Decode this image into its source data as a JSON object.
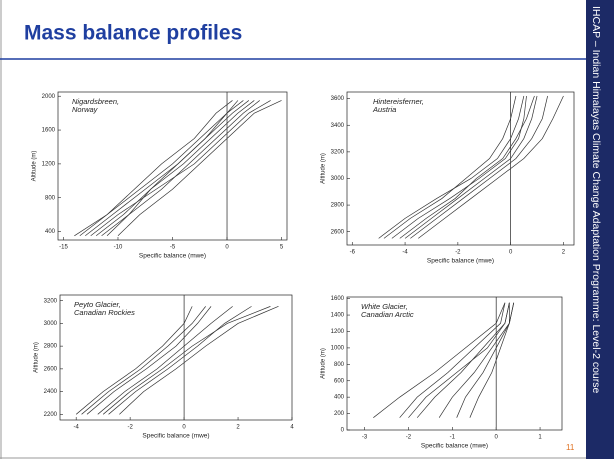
{
  "slide": {
    "title": "Mass balance profiles",
    "sidebar": "IHCAP – Indian Himalayas Climate Change Adaptation Programme: Level-2 course",
    "page_number": "11"
  },
  "chart_data": [
    {
      "type": "line",
      "title": [
        "Nigardsbreen,",
        "Norway"
      ],
      "xlabel": "Specific balance (mwe)",
      "ylabel": "Altitude (m)",
      "color": "#333333",
      "y": [
        350,
        600,
        900,
        1200,
        1500,
        1800,
        1950
      ],
      "series": [
        {
          "values": [
            -14,
            -11,
            -8,
            -5,
            -2.5,
            0,
            1.5
          ]
        },
        {
          "values": [
            -13,
            -10.5,
            -7.5,
            -4.5,
            -2,
            0.5,
            2
          ]
        },
        {
          "values": [
            -12,
            -9.5,
            -7,
            -4,
            -1.5,
            1,
            2.5
          ]
        },
        {
          "values": [
            -11,
            -9,
            -6,
            -3.5,
            -1,
            1.5,
            3
          ]
        },
        {
          "values": [
            -12.5,
            -10,
            -6.5,
            -3,
            -0.5,
            2,
            4
          ]
        },
        {
          "values": [
            -10,
            -8,
            -5,
            -2.5,
            0,
            2.5,
            5
          ]
        },
        {
          "values": [
            -13.5,
            -11,
            -8.5,
            -6,
            -3,
            -1,
            0.5
          ]
        },
        {
          "values": [
            -11.5,
            -9,
            -7,
            -4.5,
            -2,
            0,
            1
          ]
        }
      ],
      "xlim": [
        -15.5,
        5.5
      ],
      "xticks": [
        -15,
        -10,
        -5,
        0,
        5
      ],
      "ylim": [
        300,
        2050
      ],
      "yticks": [
        400,
        800,
        1200,
        1600,
        2000
      ]
    },
    {
      "type": "line",
      "title": [
        "Hintereisferner,",
        "Austria"
      ],
      "xlabel": "Specific balance (mwe)",
      "ylabel": "Altitude (m)",
      "color": "#333333",
      "y": [
        2550,
        2700,
        2850,
        3000,
        3150,
        3300,
        3450,
        3620
      ],
      "series": [
        {
          "values": [
            -5,
            -4,
            -2.8,
            -1.5,
            -0.5,
            0,
            0.3,
            0.5
          ]
        },
        {
          "values": [
            -4.5,
            -3.5,
            -2.3,
            -1.2,
            -0.2,
            0.3,
            0.5,
            0.6
          ]
        },
        {
          "values": [
            -4,
            -3,
            -2,
            -1,
            0,
            0.5,
            0.8,
            1
          ]
        },
        {
          "values": [
            -3.8,
            -2.8,
            -1.8,
            -0.8,
            0.2,
            0.8,
            1.2,
            1.4
          ]
        },
        {
          "values": [
            -4.2,
            -3.2,
            -2.1,
            -1.3,
            -0.3,
            0.2,
            0.6,
            0.9
          ]
        },
        {
          "values": [
            -3.5,
            -2.5,
            -1.5,
            -0.5,
            0.5,
            1.2,
            1.6,
            2
          ]
        },
        {
          "values": [
            -4.8,
            -3.8,
            -2.6,
            -1.7,
            -0.8,
            -0.3,
            0,
            0.2
          ]
        }
      ],
      "xlim": [
        -6.2,
        2.4
      ],
      "xticks": [
        -6,
        -4,
        -2,
        0,
        2
      ],
      "ylim": [
        2500,
        3650
      ],
      "yticks": [
        2600,
        2800,
        3000,
        3200,
        3400,
        3600
      ]
    },
    {
      "type": "line",
      "title": [
        "Peyto Glacier,",
        "Canadian Rockies"
      ],
      "xlabel": "Specific balance (mwe)",
      "ylabel": "Altitude (m)",
      "color": "#333333",
      "y": [
        2200,
        2400,
        2600,
        2800,
        3000,
        3150
      ],
      "series": [
        {
          "values": [
            -4,
            -3,
            -1.8,
            -0.8,
            0,
            0.3
          ]
        },
        {
          "values": [
            -3.6,
            -2.6,
            -1.4,
            -0.3,
            0.5,
            1
          ]
        },
        {
          "values": [
            -3.2,
            -2.2,
            -1,
            0,
            1,
            1.8
          ]
        },
        {
          "values": [
            -2.8,
            -1.8,
            -0.6,
            0.5,
            1.5,
            2.5
          ]
        },
        {
          "values": [
            -3,
            -2,
            -0.8,
            0.3,
            1.6,
            3.2
          ]
        },
        {
          "values": [
            -2.4,
            -1.5,
            -0.3,
            0.8,
            2,
            3.5
          ]
        },
        {
          "values": [
            -3.8,
            -2.8,
            -1.6,
            -0.6,
            0.3,
            0.8
          ]
        }
      ],
      "xlim": [
        -4.6,
        4
      ],
      "xticks": [
        -4,
        -2,
        0,
        2,
        4
      ],
      "ylim": [
        2150,
        3250
      ],
      "yticks": [
        2200,
        2400,
        2600,
        2800,
        3000,
        3200
      ]
    },
    {
      "type": "line",
      "title": [
        "White Glacier,",
        "Canadian Arctic"
      ],
      "xlabel": "Specific balance (mwe)",
      "ylabel": "Altitude (m)",
      "color": "#333333",
      "y": [
        150,
        400,
        700,
        1000,
        1300,
        1550
      ],
      "series": [
        {
          "values": [
            -2.8,
            -2.2,
            -1.4,
            -0.7,
            0,
            0.2
          ]
        },
        {
          "values": [
            -2.2,
            -1.8,
            -1.1,
            -0.5,
            0.1,
            0.2
          ]
        },
        {
          "values": [
            -1.8,
            -1.4,
            -0.8,
            -0.3,
            0.2,
            0.3
          ]
        },
        {
          "values": [
            -1.3,
            -1,
            -0.5,
            -0.1,
            0.3,
            0.3
          ]
        },
        {
          "values": [
            -0.9,
            -0.7,
            -0.3,
            0,
            0.3,
            0.4
          ]
        },
        {
          "values": [
            -2,
            -1.6,
            -0.9,
            -0.2,
            0.2,
            0.3
          ]
        },
        {
          "values": [
            -0.6,
            -0.4,
            -0.1,
            0.1,
            0.3,
            0.4
          ]
        }
      ],
      "xlim": [
        -3.4,
        1.5
      ],
      "xticks": [
        -3,
        -2,
        -1,
        0,
        1
      ],
      "ylim": [
        0,
        1620
      ],
      "yticks": [
        0,
        200,
        400,
        600,
        800,
        1000,
        1200,
        1400,
        1600
      ]
    }
  ]
}
